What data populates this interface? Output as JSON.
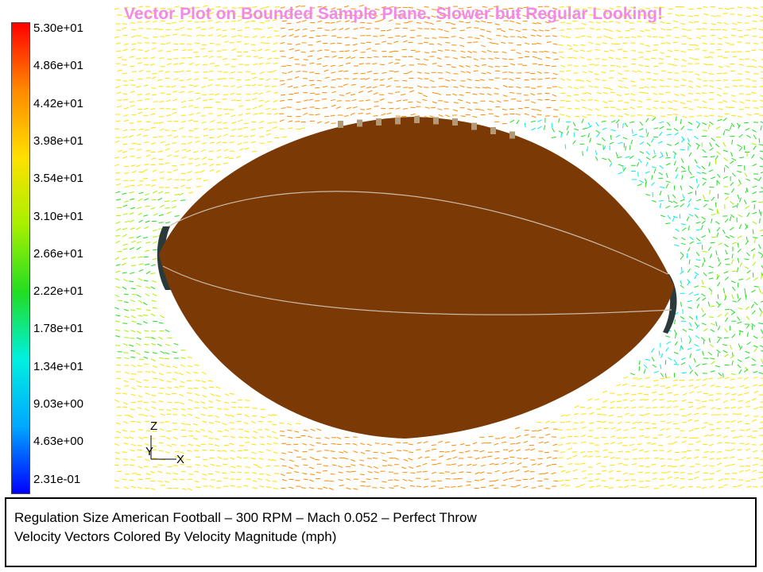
{
  "title": "Vector Plot on Bounded Sample Plane. Slower but Regular Looking!",
  "colorbar": {
    "ticks": [
      "5.30e+01",
      "4.86e+01",
      "4.42e+01",
      "3.98e+01",
      "3.54e+01",
      "3.10e+01",
      "2.66e+01",
      "2.22e+01",
      "1.78e+01",
      "1.34e+01",
      "9.03e+00",
      "4.63e+00",
      "2.31e-01"
    ],
    "min": 0.231,
    "max": 53.0,
    "colors": [
      "#ff0000",
      "#ff8a00",
      "#ffe000",
      "#a8f000",
      "#22dd22",
      "#00f0e0",
      "#00a8ff",
      "#0000ff"
    ]
  },
  "axes": {
    "z": "Z",
    "y": "Y",
    "x": "X"
  },
  "caption": {
    "line1": "Regulation Size American Football – 300 RPM – Mach 0.052 – Perfect Throw",
    "line2": "Velocity Vectors Colored By Velocity Magnitude (mph)"
  },
  "football_color": "#7b3a05",
  "seam_color": "#c9b9a8"
}
